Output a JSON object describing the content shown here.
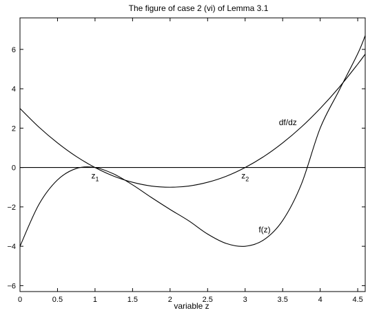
{
  "chart_data": {
    "type": "line",
    "title": "The figure of  case 2 (vi) of Lemma 3.1",
    "xlabel": "variable z",
    "ylabel": "",
    "xlim": [
      0,
      4.6
    ],
    "ylim": [
      -6.3,
      7.6
    ],
    "grid": false,
    "x_ticks": [
      0,
      0.5,
      1,
      1.5,
      2,
      2.5,
      3,
      3.5,
      4,
      4.5
    ],
    "x_tick_labels": [
      "0",
      "0.5",
      "1",
      "1.5",
      "2",
      "2.5",
      "3",
      "3.5",
      "4",
      "4.5"
    ],
    "y_ticks": [
      -6,
      -4,
      -2,
      0,
      2,
      4,
      6
    ],
    "y_tick_labels": [
      "−6",
      "−4",
      "−2",
      "0",
      "2",
      "4",
      "6"
    ],
    "series": [
      {
        "name": "f(z)",
        "x": [
          0,
          0.25,
          0.5,
          0.75,
          1,
          1.25,
          1.5,
          1.75,
          2,
          2.25,
          2.5,
          2.75,
          3,
          3.25,
          3.5,
          3.75,
          4,
          4.25,
          4.5,
          4.6
        ],
        "y": [
          -4,
          -1.89,
          -0.63,
          -0.05,
          0,
          -0.33,
          -0.88,
          -1.52,
          -2.13,
          -2.71,
          -3.38,
          -3.86,
          -4,
          -3.67,
          -2.69,
          -0.84,
          2.0,
          3.9,
          5.78,
          6.7
        ]
      },
      {
        "name": "df/dz",
        "x": [
          0,
          0.25,
          0.5,
          0.75,
          1,
          1.25,
          1.5,
          1.75,
          2,
          2.25,
          2.5,
          2.75,
          3,
          3.25,
          3.5,
          3.75,
          4,
          4.25,
          4.5,
          4.6
        ],
        "y": [
          3,
          2.06,
          1.25,
          0.56,
          0,
          -0.44,
          -0.75,
          -0.94,
          -1.0,
          -0.94,
          -0.75,
          -0.44,
          0,
          0.56,
          1.25,
          2.06,
          3,
          4.06,
          5.25,
          5.76
        ]
      },
      {
        "name": "zero line",
        "x": [
          0,
          4.6
        ],
        "y": [
          0,
          0
        ]
      }
    ],
    "annotations": [
      {
        "text": "df/dz",
        "x": 3.45,
        "y": 2.15
      },
      {
        "text": "f(z)",
        "x": 3.18,
        "y": -3.3
      },
      {
        "text": "z",
        "sub": "1",
        "x": 0.95,
        "y": -0.55
      },
      {
        "text": "z",
        "sub": "2",
        "x": 2.95,
        "y": -0.55
      }
    ]
  }
}
